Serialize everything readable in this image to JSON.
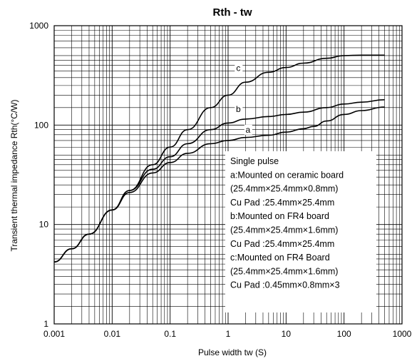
{
  "chart_data": {
    "type": "line",
    "title": "Rth - tw",
    "xlabel": "Pulse width tw  (S)",
    "ylabel": "Transient thermal impedance Rth(°C/W)",
    "x_scale": "log",
    "y_scale": "log",
    "xlim": [
      0.001,
      1000
    ],
    "ylim": [
      1,
      1000
    ],
    "grid": true,
    "x_ticks": [
      "0.001",
      "0.01",
      "0.1",
      "1",
      "10",
      "100",
      "1000"
    ],
    "y_ticks": [
      "1",
      "10",
      "100",
      "1000"
    ],
    "legend_lines": [
      "Single pulse",
      "a:Mounted on ceramic board",
      "(25.4mm×25.4mm×0.8mm)",
      "Cu Pad :25.4mm×25.4mm",
      "b:Mounted on FR4 board",
      "(25.4mm×25.4mm×1.6mm)",
      "Cu Pad :25.4mm×25.4mm",
      "c:Mounted on FR4 Board",
      "(25.4mm×25.4mm×1.6mm)",
      "Cu Pad :0.45mm×0.8mm×3"
    ],
    "series": [
      {
        "name": "a",
        "x": [
          0.001,
          0.002,
          0.004,
          0.01,
          0.02,
          0.05,
          0.1,
          0.2,
          0.5,
          1,
          2,
          5,
          10,
          20,
          30,
          50,
          100,
          200,
          500
        ],
        "y": [
          4.2,
          5.7,
          8.0,
          14,
          21,
          33,
          42,
          52,
          65,
          70,
          75,
          79,
          85,
          92,
          97,
          110,
          128,
          140,
          152
        ]
      },
      {
        "name": "b",
        "x": [
          0.001,
          0.002,
          0.004,
          0.01,
          0.02,
          0.05,
          0.1,
          0.2,
          0.5,
          1,
          2,
          5,
          10,
          20,
          50,
          100,
          200,
          500
        ],
        "y": [
          4.2,
          5.7,
          8.0,
          14,
          22,
          36,
          48,
          65,
          90,
          105,
          115,
          122,
          128,
          135,
          150,
          163,
          170,
          180
        ]
      },
      {
        "name": "c",
        "x": [
          0.001,
          0.002,
          0.004,
          0.01,
          0.02,
          0.05,
          0.1,
          0.2,
          0.5,
          1,
          2,
          5,
          10,
          20,
          50,
          100,
          200,
          500
        ],
        "y": [
          4.2,
          5.7,
          8.0,
          14,
          22,
          40,
          60,
          90,
          150,
          200,
          270,
          340,
          380,
          420,
          470,
          500,
          505,
          505
        ]
      }
    ],
    "curve_labels": [
      {
        "text": "a",
        "x": 2.2,
        "y": 84
      },
      {
        "text": "b",
        "x": 1.5,
        "y": 135
      },
      {
        "text": "c",
        "x": 1.5,
        "y": 350
      }
    ]
  }
}
